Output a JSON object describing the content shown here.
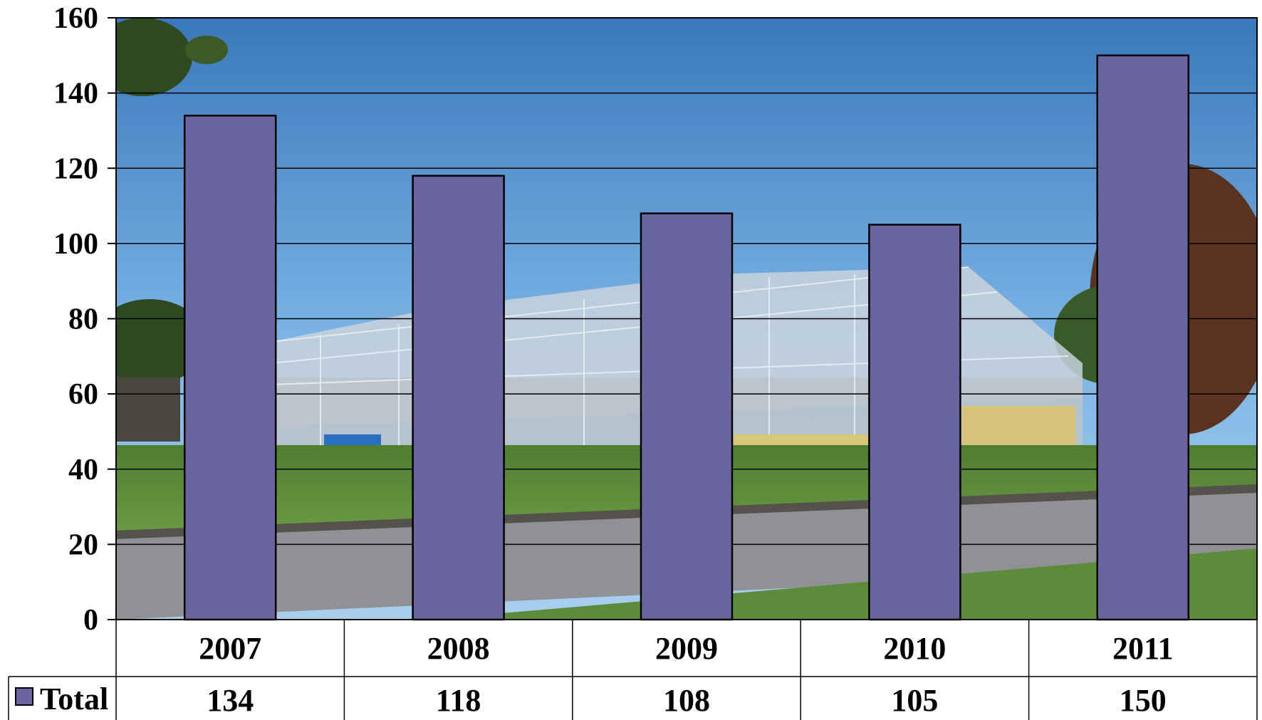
{
  "chart_data": {
    "type": "bar",
    "categories": [
      "2007",
      "2008",
      "2009",
      "2010",
      "2011"
    ],
    "series": [
      {
        "name": "Total",
        "values": [
          134,
          118,
          108,
          105,
          150
        ]
      }
    ],
    "title": "",
    "xlabel": "",
    "ylabel": "",
    "ylim": [
      0,
      160
    ],
    "yticks": [
      0,
      20,
      40,
      60,
      80,
      100,
      120,
      140,
      160
    ],
    "grid": true,
    "legend": "left of data table",
    "data_table": true,
    "background": "photo of steel-frame building under construction",
    "colors": {
      "bar": "#6b659f",
      "sky_top": "#3f7ec0",
      "sky_bottom": "#8ec0ec",
      "grass": "#5b8a3a",
      "road": "#8e8f92"
    }
  }
}
